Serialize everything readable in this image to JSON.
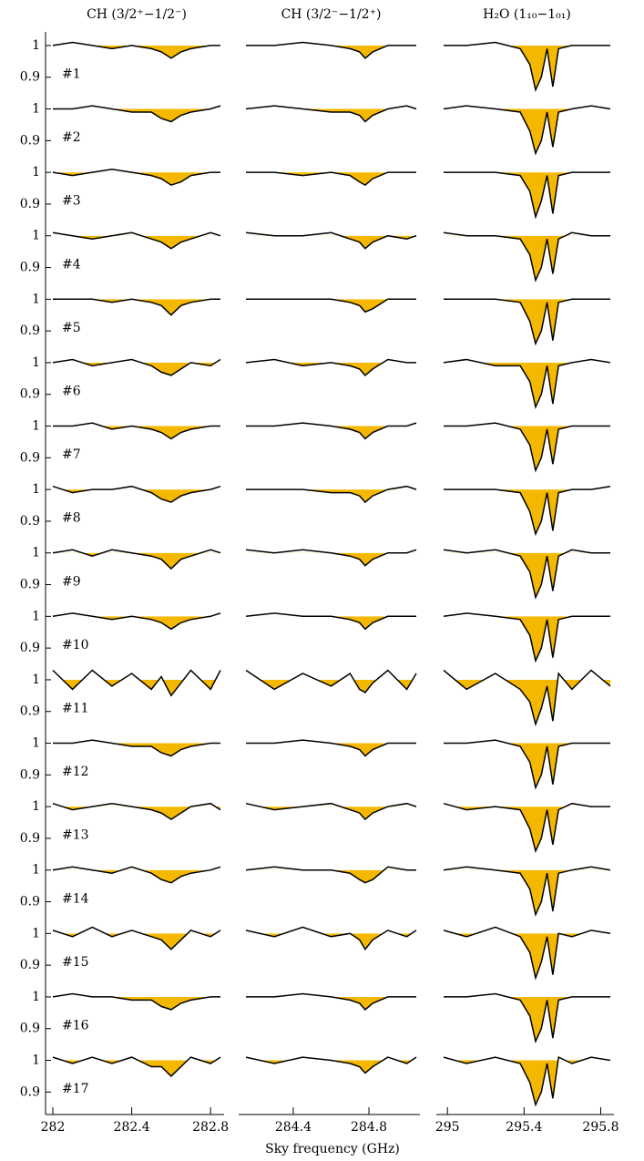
{
  "chart_data": [
    {
      "type": "line",
      "title": "CH (3/2⁺−1/2⁻)",
      "color": "#000000",
      "fill_color": "#f5b800",
      "x": [
        282.0,
        282.1,
        282.2,
        282.3,
        282.4,
        282.5,
        282.55,
        282.6,
        282.65,
        282.7,
        282.8,
        282.85
      ],
      "xlim": [
        282,
        282.85
      ],
      "xticks": [
        282,
        282.4,
        282.8
      ],
      "ylim": [
        0.83,
        1.03
      ],
      "yticks": [
        0.9,
        1
      ],
      "series": [
        {
          "name": "#1",
          "values": [
            1,
            1.01,
            1,
            0.99,
            1,
            0.99,
            0.98,
            0.96,
            0.98,
            0.99,
            1,
            1
          ]
        },
        {
          "name": "#2",
          "values": [
            1,
            1,
            1.01,
            1,
            0.99,
            0.99,
            0.97,
            0.96,
            0.98,
            0.99,
            1,
            1.01
          ]
        },
        {
          "name": "#3",
          "values": [
            1,
            0.99,
            1,
            1.01,
            1,
            0.99,
            0.98,
            0.96,
            0.97,
            0.99,
            1,
            1
          ]
        },
        {
          "name": "#4",
          "values": [
            1.01,
            1,
            0.99,
            1,
            1.01,
            0.99,
            0.98,
            0.96,
            0.98,
            0.99,
            1.01,
            1
          ]
        },
        {
          "name": "#5",
          "values": [
            1,
            1,
            1,
            0.99,
            1,
            0.99,
            0.98,
            0.95,
            0.98,
            0.99,
            1,
            1
          ]
        },
        {
          "name": "#6",
          "values": [
            1,
            1.01,
            0.99,
            1,
            1.01,
            0.99,
            0.97,
            0.96,
            0.98,
            1,
            0.99,
            1.01
          ]
        },
        {
          "name": "#7",
          "values": [
            1,
            1,
            1.01,
            0.99,
            1,
            0.99,
            0.98,
            0.96,
            0.98,
            0.99,
            1,
            1
          ]
        },
        {
          "name": "#8",
          "values": [
            1.01,
            0.99,
            1,
            1,
            1.01,
            0.99,
            0.97,
            0.96,
            0.98,
            0.99,
            1,
            1.01
          ]
        },
        {
          "name": "#9",
          "values": [
            1,
            1.01,
            0.99,
            1.01,
            1,
            0.99,
            0.98,
            0.95,
            0.98,
            0.99,
            1.01,
            1
          ]
        },
        {
          "name": "#10",
          "values": [
            1,
            1.01,
            1,
            0.99,
            1,
            0.99,
            0.98,
            0.96,
            0.98,
            0.99,
            1,
            1.01
          ]
        },
        {
          "name": "#11",
          "values": [
            1.03,
            0.97,
            1.03,
            0.98,
            1.02,
            0.97,
            1.01,
            0.95,
            0.99,
            1.03,
            0.97,
            1.03
          ]
        },
        {
          "name": "#12",
          "values": [
            1,
            1,
            1.01,
            1,
            0.99,
            0.99,
            0.97,
            0.96,
            0.98,
            0.99,
            1,
            1
          ]
        },
        {
          "name": "#13",
          "values": [
            1.01,
            0.99,
            1,
            1.01,
            1,
            0.99,
            0.98,
            0.96,
            0.98,
            1,
            1.01,
            0.99
          ]
        },
        {
          "name": "#14",
          "values": [
            1,
            1.01,
            1,
            0.99,
            1.01,
            0.99,
            0.97,
            0.96,
            0.98,
            0.99,
            1,
            1.01
          ]
        },
        {
          "name": "#15",
          "values": [
            1.01,
            0.99,
            1.02,
            0.99,
            1.01,
            0.99,
            0.98,
            0.95,
            0.98,
            1.01,
            0.99,
            1.01
          ]
        },
        {
          "name": "#16",
          "values": [
            1,
            1.01,
            1,
            1,
            0.99,
            0.99,
            0.97,
            0.96,
            0.98,
            0.99,
            1,
            1
          ]
        },
        {
          "name": "#17",
          "values": [
            1.01,
            0.99,
            1.01,
            0.99,
            1.01,
            0.98,
            0.98,
            0.95,
            0.98,
            1.01,
            0.99,
            1.01
          ]
        }
      ]
    },
    {
      "type": "line",
      "title": "CH (3/2⁻−1/2⁺)",
      "color": "#000000",
      "fill_color": "#f5b800",
      "x": [
        284.15,
        284.3,
        284.45,
        284.6,
        284.7,
        284.75,
        284.78,
        284.82,
        284.9,
        285.0,
        285.05
      ],
      "xlim": [
        284.15,
        285.05
      ],
      "xticks": [
        284.4,
        284.8
      ],
      "ylim": [
        0.83,
        1.03
      ],
      "series": [
        {
          "values": [
            1,
            1,
            1.01,
            1,
            0.99,
            0.98,
            0.96,
            0.98,
            1,
            1,
            1
          ]
        },
        {
          "values": [
            1,
            1.01,
            1,
            0.99,
            0.99,
            0.98,
            0.96,
            0.98,
            1,
            1.01,
            1
          ]
        },
        {
          "values": [
            1,
            1,
            0.99,
            1,
            0.99,
            0.97,
            0.96,
            0.98,
            1,
            1,
            1
          ]
        },
        {
          "values": [
            1.01,
            1,
            1,
            1.01,
            0.99,
            0.98,
            0.96,
            0.98,
            1,
            0.99,
            1
          ]
        },
        {
          "values": [
            1,
            1,
            1,
            1,
            0.99,
            0.98,
            0.96,
            0.97,
            1,
            1,
            1
          ]
        },
        {
          "values": [
            1,
            1.01,
            0.99,
            1,
            0.99,
            0.98,
            0.96,
            0.98,
            1.01,
            1,
            1
          ]
        },
        {
          "values": [
            1,
            1,
            1.01,
            1,
            0.99,
            0.98,
            0.96,
            0.98,
            1,
            1,
            1.01
          ]
        },
        {
          "values": [
            1,
            1,
            1,
            0.99,
            0.99,
            0.98,
            0.96,
            0.98,
            1,
            1.01,
            1
          ]
        },
        {
          "values": [
            1.01,
            1,
            1.01,
            1,
            0.99,
            0.98,
            0.96,
            0.98,
            1,
            1,
            1.01
          ]
        },
        {
          "values": [
            1,
            1.01,
            1,
            1,
            0.99,
            0.98,
            0.96,
            0.98,
            1,
            1,
            1
          ]
        },
        {
          "values": [
            1.03,
            0.97,
            1.02,
            0.98,
            1.02,
            0.97,
            0.96,
            0.99,
            1.03,
            0.97,
            1.02
          ]
        },
        {
          "values": [
            1,
            1,
            1.01,
            1,
            0.99,
            0.98,
            0.96,
            0.98,
            1,
            1,
            1
          ]
        },
        {
          "values": [
            1.01,
            0.99,
            1,
            1.01,
            0.99,
            0.98,
            0.96,
            0.98,
            1,
            1.01,
            1
          ]
        },
        {
          "values": [
            1,
            1.01,
            1,
            1,
            0.99,
            0.97,
            0.96,
            0.97,
            1.01,
            1,
            1
          ]
        },
        {
          "values": [
            1.01,
            0.99,
            1.02,
            0.99,
            1,
            0.98,
            0.95,
            0.98,
            1.01,
            0.99,
            1.01
          ]
        },
        {
          "values": [
            1,
            1,
            1.01,
            1,
            0.99,
            0.98,
            0.96,
            0.98,
            1,
            1,
            1
          ]
        },
        {
          "values": [
            1.01,
            0.99,
            1.01,
            1,
            0.99,
            0.98,
            0.96,
            0.98,
            1.01,
            0.99,
            1.01
          ]
        }
      ]
    },
    {
      "type": "line",
      "title": "H₂O (1₁₀−1₀₁)",
      "color": "#000000",
      "fill_color": "#f5b800",
      "x": [
        294.98,
        295.1,
        295.25,
        295.38,
        295.43,
        295.46,
        295.49,
        295.52,
        295.55,
        295.58,
        295.65,
        295.75,
        295.85
      ],
      "xlim": [
        294.98,
        295.85
      ],
      "xticks": [
        295,
        295.4,
        295.8
      ],
      "ylim": [
        0.83,
        1.03
      ],
      "series": [
        {
          "values": [
            1,
            1,
            1.01,
            0.99,
            0.94,
            0.86,
            0.9,
            0.99,
            0.87,
            0.99,
            1,
            1,
            1
          ]
        },
        {
          "values": [
            1,
            1.01,
            1,
            0.99,
            0.93,
            0.86,
            0.9,
            0.99,
            0.88,
            0.99,
            1,
            1.01,
            1
          ]
        },
        {
          "values": [
            1,
            1,
            1,
            0.99,
            0.94,
            0.86,
            0.91,
            0.99,
            0.87,
            0.99,
            1,
            1,
            1
          ]
        },
        {
          "values": [
            1.01,
            1,
            1,
            0.99,
            0.94,
            0.86,
            0.9,
            0.99,
            0.88,
            0.99,
            1.01,
            1,
            1
          ]
        },
        {
          "values": [
            1,
            1,
            1,
            0.99,
            0.93,
            0.86,
            0.9,
            0.99,
            0.87,
            0.99,
            1,
            1,
            1
          ]
        },
        {
          "values": [
            1,
            1.01,
            0.99,
            0.99,
            0.94,
            0.86,
            0.9,
            0.99,
            0.87,
            0.99,
            1,
            1.01,
            1
          ]
        },
        {
          "values": [
            1,
            1,
            1.01,
            0.99,
            0.94,
            0.86,
            0.9,
            0.99,
            0.88,
            0.99,
            1,
            1,
            1
          ]
        },
        {
          "values": [
            1,
            1,
            1,
            0.99,
            0.93,
            0.86,
            0.9,
            0.99,
            0.87,
            0.99,
            1,
            1,
            1.01
          ]
        },
        {
          "values": [
            1.01,
            1,
            1.01,
            0.99,
            0.94,
            0.86,
            0.9,
            0.99,
            0.88,
            0.99,
            1.01,
            1,
            1
          ]
        },
        {
          "values": [
            1,
            1.01,
            1,
            0.99,
            0.94,
            0.86,
            0.9,
            0.99,
            0.87,
            0.99,
            1,
            1,
            1
          ]
        },
        {
          "values": [
            1.03,
            0.97,
            1.02,
            0.97,
            0.93,
            0.86,
            0.91,
            0.98,
            0.87,
            1.02,
            0.97,
            1.03,
            0.98
          ]
        },
        {
          "values": [
            1,
            1,
            1.01,
            0.99,
            0.94,
            0.86,
            0.9,
            0.99,
            0.87,
            0.99,
            1,
            1,
            1
          ]
        },
        {
          "values": [
            1.01,
            0.99,
            1,
            0.99,
            0.93,
            0.86,
            0.9,
            0.99,
            0.88,
            0.99,
            1.01,
            1,
            1
          ]
        },
        {
          "values": [
            1,
            1.01,
            1,
            0.99,
            0.94,
            0.86,
            0.9,
            0.99,
            0.87,
            0.99,
            1,
            1.01,
            1
          ]
        },
        {
          "values": [
            1.01,
            0.99,
            1.02,
            0.99,
            0.94,
            0.86,
            0.91,
            0.99,
            0.87,
            1,
            0.99,
            1.01,
            1
          ]
        },
        {
          "values": [
            1,
            1,
            1.01,
            0.99,
            0.94,
            0.86,
            0.9,
            0.99,
            0.87,
            0.99,
            1,
            1,
            1
          ]
        },
        {
          "values": [
            1.01,
            0.99,
            1.01,
            0.99,
            0.93,
            0.86,
            0.9,
            0.99,
            0.88,
            1.01,
            0.99,
            1.01,
            1
          ]
        }
      ]
    }
  ],
  "xlabel": "Sky frequency (GHz)"
}
